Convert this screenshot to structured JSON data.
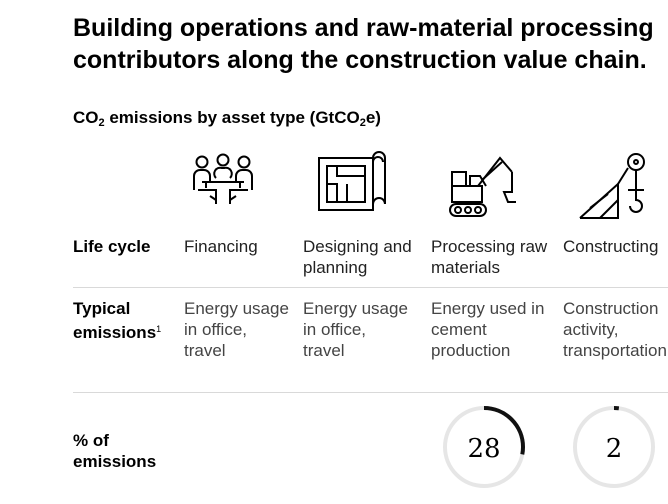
{
  "headline": {
    "line1": "Building operations and raw-material processing",
    "line2": "contributors along the construction value chain."
  },
  "subtitle": {
    "pre": "CO",
    "sub": "2",
    "mid": " emissions by asset type (GtCO",
    "sub2": "2",
    "post": "e)"
  },
  "rows": {
    "life_cycle": "Life cycle",
    "typical_emissions": "Typical emissions",
    "typical_footnote": "1",
    "percent": "% of emissions"
  },
  "stages": [
    {
      "name": "Financing",
      "icon": "meeting-people-icon",
      "emissions": "Energy usage in office, travel"
    },
    {
      "name": "Designing and planning",
      "icon": "blueprint-icon",
      "emissions": "Energy usage in office, travel"
    },
    {
      "name": "Processing raw materials",
      "icon": "excavator-icon",
      "emissions": "Energy used in cement production"
    },
    {
      "name": "Constructing",
      "icon": "crane-icon",
      "emissions": "Construction activity, transportation"
    }
  ],
  "chart_data": {
    "type": "donut",
    "series": [
      {
        "category": "Processing raw materials",
        "value": 28,
        "label": "28"
      },
      {
        "category": "Constructing",
        "value": 2,
        "label": "2"
      }
    ],
    "unit": "% of emissions"
  },
  "colors": {
    "ring_fill": "#111111",
    "ring_track": "#e6e6e6",
    "divider": "#d9d9d9"
  }
}
